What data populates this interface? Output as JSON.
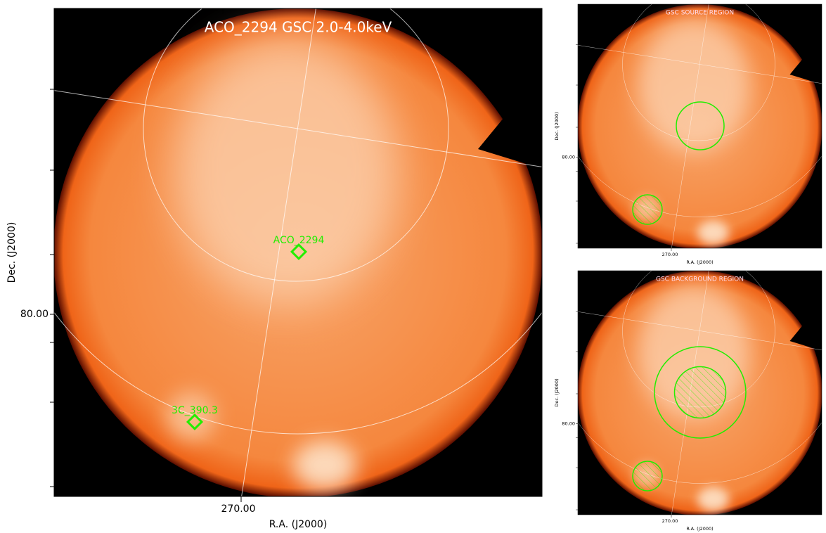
{
  "main": {
    "title": "ACO_2294 GSC 2.0-4.0keV",
    "x_label": "R.A. (J2000)",
    "y_label": "Dec. (J2000)",
    "x_tick": "270.00",
    "y_tick": "80.00",
    "sources": [
      {
        "label": "ACO_2294"
      },
      {
        "label": "3C_390.3"
      }
    ]
  },
  "panels": [
    {
      "title": "GSC SOURCE REGION",
      "x_label": "R.A. (J2000)",
      "y_label": "Dec. (J2000)",
      "x_tick": "270.00",
      "y_tick": "80.00"
    },
    {
      "title": "GSC BACKGROUND REGION",
      "x_label": "R.A. (J2000)",
      "y_label": "Dec. (J2000)",
      "x_tick": "270.00",
      "y_tick": "80.00"
    }
  ]
}
